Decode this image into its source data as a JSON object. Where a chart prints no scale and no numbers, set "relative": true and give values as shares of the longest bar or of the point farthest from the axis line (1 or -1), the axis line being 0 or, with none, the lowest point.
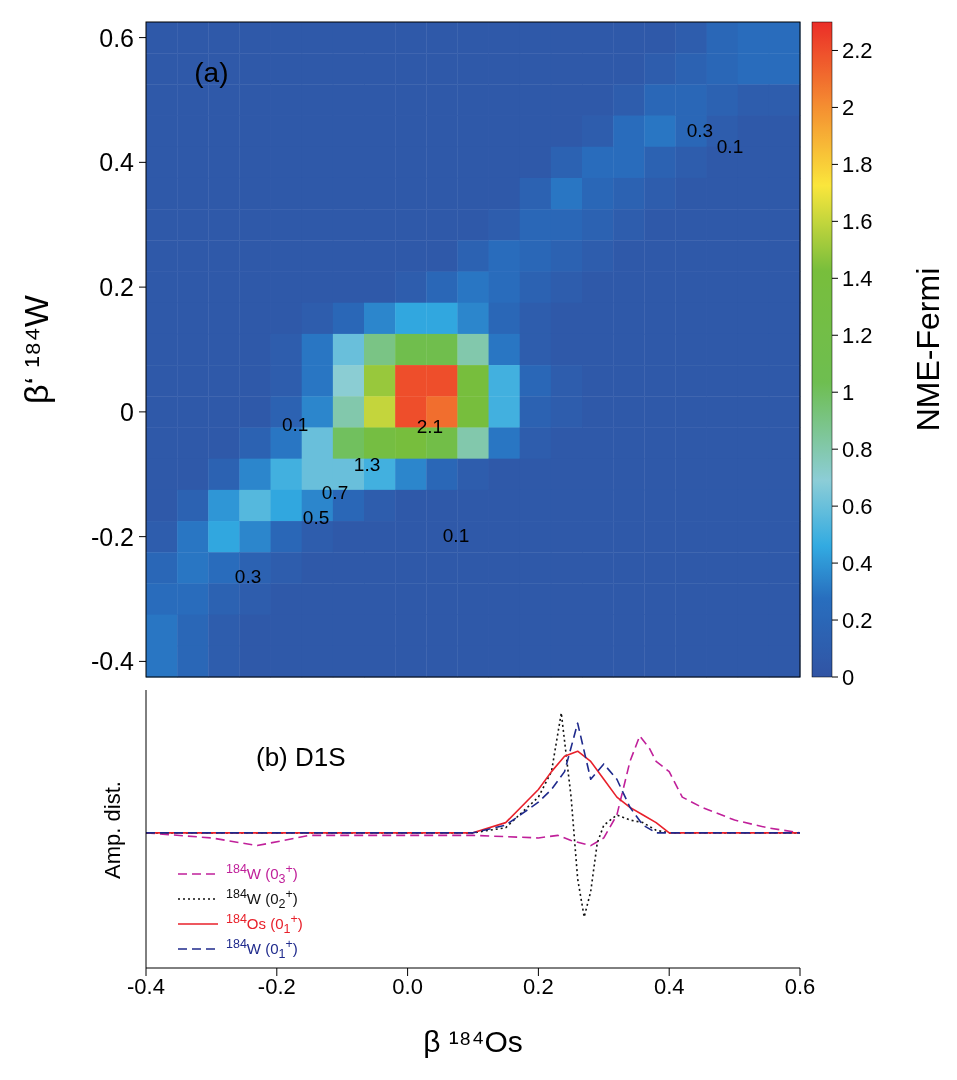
{
  "chart_data": [
    {
      "type": "heatmap",
      "ylabel": "β‘ ¹⁸⁴W",
      "clabel": "NME-Fermi",
      "tick_labels": "y",
      "categories": [
        null,
        null,
        null,
        null,
        null,
        null,
        null,
        null,
        null,
        null,
        null,
        null,
        null,
        null,
        null,
        null,
        null,
        null,
        null,
        null,
        null
      ],
      "y_categories": [
        "0.6",
        null,
        null,
        null,
        "0.4",
        null,
        null,
        null,
        "0.2",
        null,
        null,
        null,
        "0",
        null,
        null,
        null,
        "-0.2",
        null,
        null,
        null,
        "-0.4"
      ],
      "clim": [
        0,
        2.3
      ],
      "cticks": [
        0,
        0.2,
        0.4,
        0.6,
        0.8,
        1,
        1.2,
        1.4,
        1.6,
        1.8,
        2,
        2.2
      ],
      "cells": [
        [
          0.05,
          0.05,
          0.05,
          0.05,
          0.05,
          0.05,
          0.05,
          0.05,
          0.05,
          0.05,
          0.05,
          0.05,
          0.05,
          0.05,
          0.05,
          0.05,
          0.05,
          0.1,
          0.2,
          0.25,
          0.25
        ],
        [
          0.05,
          0.05,
          0.05,
          0.05,
          0.05,
          0.05,
          0.05,
          0.05,
          0.05,
          0.05,
          0.05,
          0.05,
          0.05,
          0.05,
          0.05,
          0.05,
          0.1,
          0.15,
          0.2,
          0.25,
          0.25
        ],
        [
          0.05,
          0.05,
          0.05,
          0.05,
          0.05,
          0.05,
          0.05,
          0.05,
          0.05,
          0.05,
          0.05,
          0.05,
          0.05,
          0.05,
          0.05,
          0.1,
          0.2,
          0.2,
          0.15,
          0.1,
          0.1
        ],
        [
          0.05,
          0.05,
          0.05,
          0.05,
          0.05,
          0.05,
          0.05,
          0.05,
          0.05,
          0.05,
          0.05,
          0.05,
          0.05,
          0.05,
          0.1,
          0.25,
          0.3,
          0.2,
          0.1,
          0.05,
          0.05
        ],
        [
          0.05,
          0.05,
          0.05,
          0.05,
          0.05,
          0.05,
          0.05,
          0.05,
          0.05,
          0.05,
          0.05,
          0.05,
          0.05,
          0.15,
          0.25,
          0.25,
          0.15,
          0.1,
          0.05,
          0.05,
          0.05
        ],
        [
          0.05,
          0.05,
          0.05,
          0.05,
          0.05,
          0.05,
          0.05,
          0.05,
          0.05,
          0.05,
          0.05,
          0.05,
          0.15,
          0.3,
          0.2,
          0.15,
          0.1,
          0.05,
          0.05,
          0.05,
          0.05
        ],
        [
          0.05,
          0.05,
          0.05,
          0.05,
          0.05,
          0.05,
          0.05,
          0.05,
          0.05,
          0.05,
          0.05,
          0.1,
          0.2,
          0.2,
          0.15,
          0.1,
          0.05,
          0.05,
          0.05,
          0.05,
          0.05
        ],
        [
          0.05,
          0.05,
          0.05,
          0.05,
          0.05,
          0.05,
          0.05,
          0.05,
          0.05,
          0.05,
          0.15,
          0.25,
          0.2,
          0.15,
          0.1,
          0.05,
          0.05,
          0.05,
          0.05,
          0.05,
          0.05
        ],
        [
          0.05,
          0.05,
          0.05,
          0.05,
          0.05,
          0.05,
          0.05,
          0.05,
          0.1,
          0.2,
          0.3,
          0.25,
          0.15,
          0.1,
          0.05,
          0.05,
          0.05,
          0.05,
          0.05,
          0.05,
          0.05
        ],
        [
          0.05,
          0.05,
          0.05,
          0.05,
          0.05,
          0.1,
          0.2,
          0.35,
          0.45,
          0.45,
          0.35,
          0.2,
          0.1,
          0.05,
          0.05,
          0.05,
          0.05,
          0.05,
          0.05,
          0.05,
          0.05
        ],
        [
          0.05,
          0.05,
          0.05,
          0.05,
          0.1,
          0.3,
          0.6,
          0.9,
          1.1,
          1.1,
          0.8,
          0.3,
          0.1,
          0.05,
          0.05,
          0.05,
          0.05,
          0.05,
          0.05,
          0.05,
          0.05
        ],
        [
          0.05,
          0.05,
          0.05,
          0.05,
          0.1,
          0.3,
          0.7,
          1.5,
          2.2,
          2.2,
          1.4,
          0.5,
          0.2,
          0.1,
          0.05,
          0.05,
          0.05,
          0.05,
          0.05,
          0.05,
          0.05
        ],
        [
          0.05,
          0.05,
          0.05,
          0.05,
          0.15,
          0.35,
          0.8,
          1.6,
          2.2,
          2.1,
          1.4,
          0.5,
          0.15,
          0.1,
          0.05,
          0.05,
          0.05,
          0.05,
          0.05,
          0.05,
          0.05
        ],
        [
          0.05,
          0.05,
          0.05,
          0.15,
          0.3,
          0.6,
          1,
          1.3,
          1.4,
          1.2,
          0.8,
          0.3,
          0.1,
          0.05,
          0.05,
          0.05,
          0.05,
          0.05,
          0.05,
          0.05,
          0.05
        ],
        [
          0.05,
          0.05,
          0.15,
          0.35,
          0.5,
          0.6,
          0.6,
          0.5,
          0.35,
          0.2,
          0.1,
          0.05,
          0.05,
          0.05,
          0.05,
          0.05,
          0.05,
          0.05,
          0.05,
          0.05,
          0.05
        ],
        [
          0.05,
          0.15,
          0.4,
          0.55,
          0.45,
          0.35,
          0.2,
          0.1,
          0.05,
          0.05,
          0.05,
          0.05,
          0.05,
          0.05,
          0.05,
          0.05,
          0.05,
          0.05,
          0.05,
          0.05,
          0.05
        ],
        [
          0.1,
          0.3,
          0.45,
          0.35,
          0.2,
          0.1,
          0.05,
          0.05,
          0.05,
          0.05,
          0.05,
          0.05,
          0.05,
          0.05,
          0.05,
          0.05,
          0.05,
          0.05,
          0.05,
          0.05,
          0.05
        ],
        [
          0.2,
          0.3,
          0.25,
          0.15,
          0.1,
          0.05,
          0.05,
          0.05,
          0.05,
          0.05,
          0.05,
          0.05,
          0.05,
          0.05,
          0.05,
          0.05,
          0.05,
          0.05,
          0.05,
          0.05,
          0.05
        ],
        [
          0.25,
          0.25,
          0.15,
          0.1,
          0.05,
          0.05,
          0.05,
          0.05,
          0.05,
          0.05,
          0.05,
          0.05,
          0.05,
          0.05,
          0.05,
          0.05,
          0.05,
          0.05,
          0.05,
          0.05,
          0.05
        ],
        [
          0.3,
          0.2,
          0.1,
          0.05,
          0.05,
          0.05,
          0.05,
          0.05,
          0.05,
          0.05,
          0.05,
          0.05,
          0.05,
          0.05,
          0.05,
          0.05,
          0.05,
          0.05,
          0.05,
          0.05,
          0.05
        ],
        [
          0.3,
          0.2,
          0.1,
          0.05,
          0.05,
          0.05,
          0.05,
          0.05,
          0.05,
          0.05,
          0.05,
          0.05,
          0.05,
          0.05,
          0.05,
          0.05,
          0.05,
          0.05,
          0.05,
          0.05,
          0.05
        ]
      ],
      "annotations": [
        "(a)",
        "0.3",
        "0.1",
        "0.1",
        "2.1",
        "1.3",
        "0.7",
        "0.5",
        "0.1",
        "0.3"
      ]
    },
    {
      "type": "line",
      "relative": true,
      "xlabel": "β ¹⁸⁴Os",
      "ylabel": "Amp. dist.",
      "legend": "bottom left",
      "xlim": [
        -0.4,
        0.6
      ],
      "xticks": [
        -0.4,
        -0.2,
        {
          "value": 0,
          "label": "0.0"
        },
        0.2,
        0.4,
        0.6
      ],
      "annotations": [
        "(b) D1S"
      ],
      "series": [
        {
          "name": "$^{184}$W (0$_{3}$$^{+}$)",
          "color": "#c0209a",
          "line_style": "dashed",
          "x": [
            -0.4,
            -0.3,
            -0.23,
            -0.15,
            0.0,
            0.1,
            0.2,
            0.23,
            0.25,
            0.28,
            0.3,
            0.32,
            0.34,
            0.355,
            0.37,
            0.38,
            0.4,
            0.42,
            0.45,
            0.5,
            0.55,
            0.6
          ],
          "values": [
            0.53,
            0.51,
            0.48,
            0.52,
            0.52,
            0.52,
            0.51,
            0.52,
            0.5,
            0.48,
            0.51,
            0.6,
            0.81,
            0.91,
            0.86,
            0.81,
            0.77,
            0.67,
            0.63,
            0.58,
            0.55,
            0.53
          ]
        },
        {
          "name": "$^{184}$W (0$_{2}$$^{+}$)",
          "color": "#111111",
          "line_style": "dotted",
          "x": [
            -0.4,
            0.1,
            0.15,
            0.2,
            0.22,
            0.235,
            0.25,
            0.26,
            0.27,
            0.28,
            0.29,
            0.3,
            0.32,
            0.34,
            0.36,
            0.38,
            0.4,
            0.6
          ],
          "values": [
            0.53,
            0.53,
            0.55,
            0.67,
            0.77,
            1,
            0.67,
            0.35,
            0.2,
            0.3,
            0.49,
            0.56,
            0.6,
            0.58,
            0.57,
            0.54,
            0.53,
            0.53
          ]
        },
        {
          "name": "$^{184}$Os (0$_{1}$$^{+}$)",
          "color": "#e8202a",
          "line_style": "solid",
          "x": [
            -0.4,
            0.1,
            0.15,
            0.2,
            0.22,
            0.24,
            0.26,
            0.28,
            0.3,
            0.32,
            0.34,
            0.36,
            0.38,
            0.4,
            0.6
          ],
          "values": [
            0.53,
            0.53,
            0.57,
            0.7,
            0.77,
            0.83,
            0.85,
            0.81,
            0.74,
            0.67,
            0.63,
            0.6,
            0.57,
            0.53,
            0.53
          ]
        },
        {
          "name": "$^{184}$W (0$_{1}$$^{+}$)",
          "color": "#1f2a8c",
          "line_style": "dashed",
          "x": [
            -0.4,
            0.1,
            0.15,
            0.2,
            0.22,
            0.24,
            0.26,
            0.28,
            0.3,
            0.32,
            0.34,
            0.36,
            0.38,
            0.4,
            0.6
          ],
          "values": [
            0.53,
            0.53,
            0.56,
            0.65,
            0.7,
            0.77,
            0.96,
            0.74,
            0.8,
            0.74,
            0.63,
            0.56,
            0.53,
            0.53,
            0.53
          ]
        }
      ]
    }
  ]
}
